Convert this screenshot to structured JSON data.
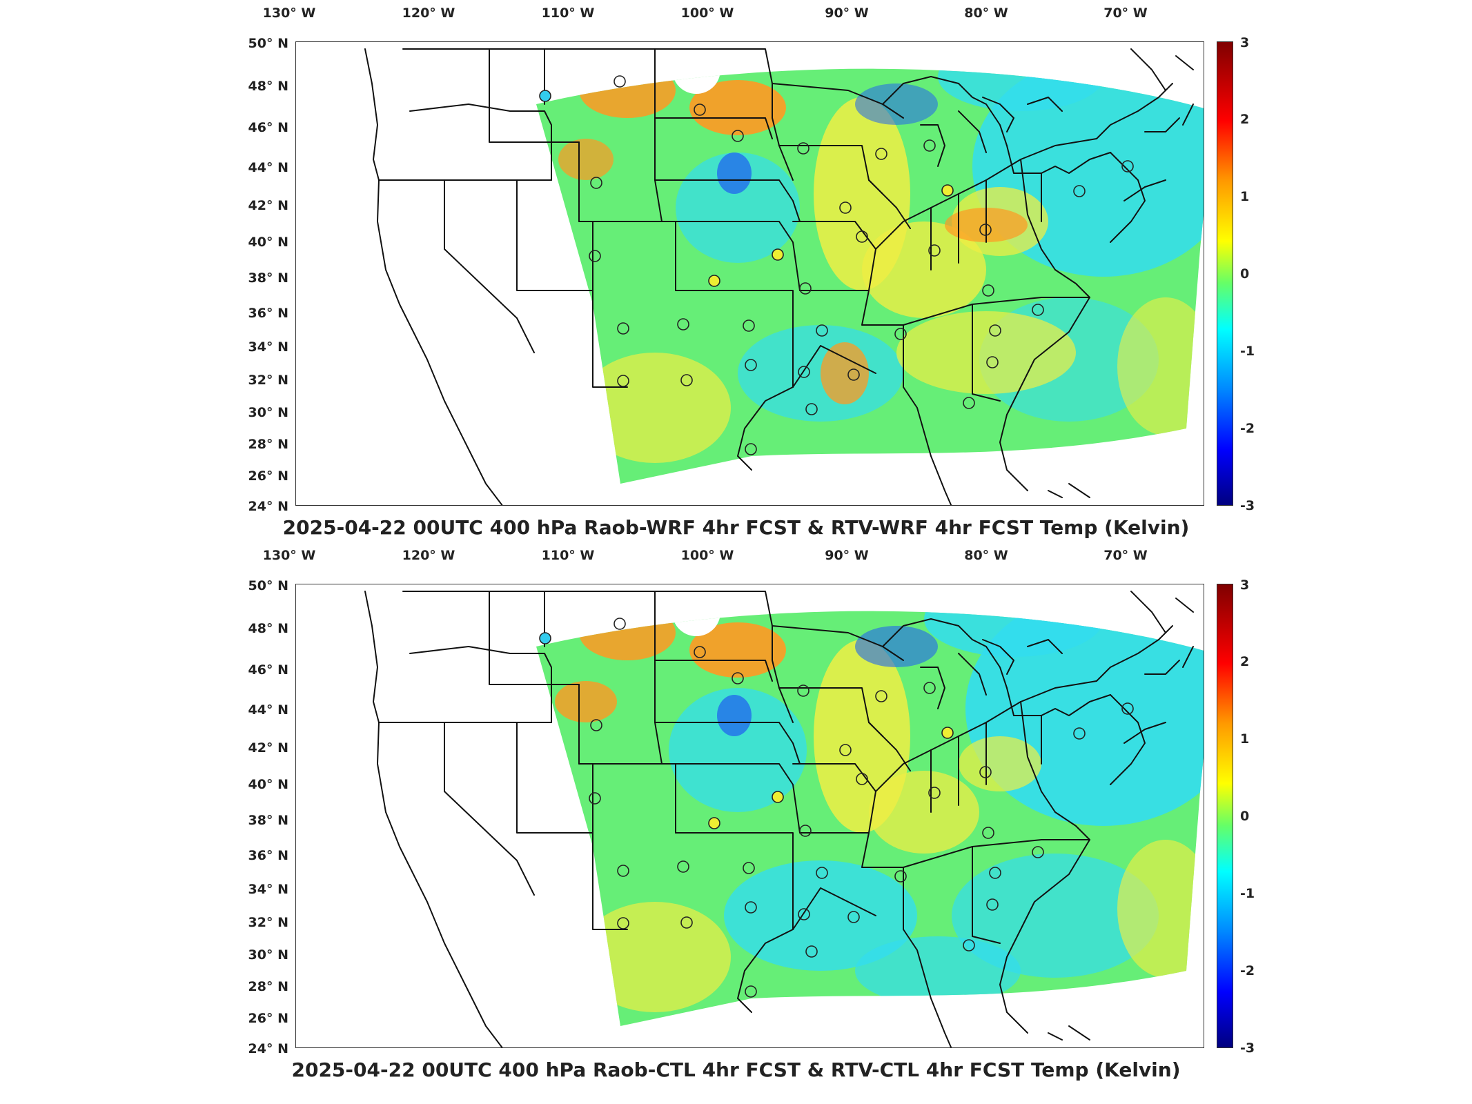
{
  "panels": [
    {
      "title": "2025-04-22 00UTC 400 hPa Raob-WRF 4hr FCST & RTV-WRF 4hr FCST Temp (Kelvin)",
      "colorbar_ticks": [
        "3",
        "2",
        "1",
        "0",
        "-1",
        "-2",
        "-3"
      ]
    },
    {
      "title": "2025-04-22 00UTC 400 hPa Raob-CTL 4hr FCST & RTV-CTL 4hr FCST Temp (Kelvin)",
      "colorbar_ticks": [
        "3",
        "2",
        "1",
        "0",
        "-1",
        "-2",
        "-3"
      ]
    }
  ],
  "lon_labels": [
    "130° W",
    "120° W",
    "110° W",
    "100° W",
    "90° W",
    "80° W",
    "70° W"
  ],
  "lat_labels": [
    "50° N",
    "48° N",
    "46° N",
    "44° N",
    "42° N",
    "40° N",
    "38° N",
    "36° N",
    "34° N",
    "32° N",
    "30° N",
    "28° N",
    "26° N",
    "24° N"
  ],
  "colors": {
    "field_base": "#66ee77",
    "field_cyan": "#33ddee",
    "field_yellow": "#eeee44",
    "field_orange": "#ff9922",
    "field_blue": "#2266ee",
    "outline": "#111111"
  }
}
